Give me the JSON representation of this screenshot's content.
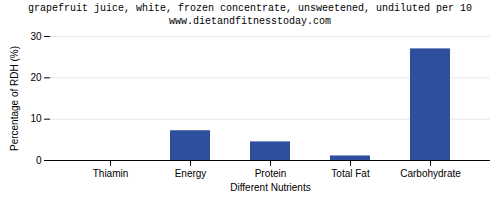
{
  "chart_data": {
    "type": "bar",
    "title": "grapefruit juice, white, frozen concentrate, unsweetened, undiluted per 10",
    "subtitle": "www.dietandfitnesstoday.com",
    "xlabel": "Different Nutrients",
    "ylabel": "Percentage of RDH (%)",
    "categories": [
      "Thiamin",
      "Energy",
      "Protein",
      "Total Fat",
      "Carbohydrate"
    ],
    "values": [
      0,
      7.2,
      4.5,
      1.1,
      27.0
    ],
    "color": "#2d4f9e",
    "ylim": [
      0,
      30
    ],
    "yticks": [
      0,
      10,
      20,
      30
    ],
    "grid": true
  }
}
